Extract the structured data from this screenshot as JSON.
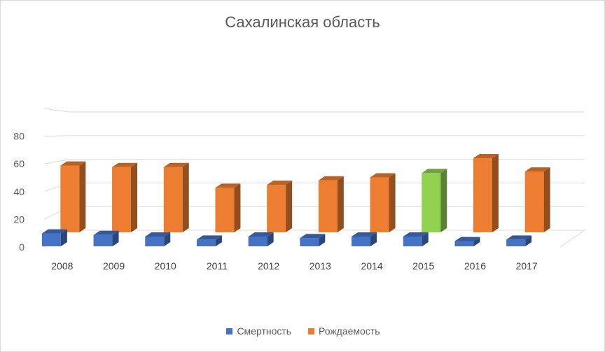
{
  "chart_data": {
    "type": "bar",
    "title": "Сахалинская область",
    "categories": [
      "2008",
      "2009",
      "2010",
      "2011",
      "2012",
      "2013",
      "2014",
      "2015",
      "2016",
      "2017"
    ],
    "series": [
      {
        "name": "Смертность",
        "values": [
          7,
          6,
          5,
          3,
          5,
          4,
          5,
          5,
          2,
          3
        ],
        "color": "#4472c4"
      },
      {
        "name": "Рождаемость",
        "values": [
          70,
          69,
          69,
          55,
          57,
          60,
          62,
          65,
          75,
          66
        ],
        "color": "#ed7d31"
      }
    ],
    "highlight": {
      "series": 1,
      "index": 7,
      "color": "#92d050"
    },
    "yticks": [
      0,
      20,
      40,
      60,
      80
    ],
    "ylim": [
      0,
      100
    ],
    "grid": true,
    "legend_position": "bottom"
  }
}
